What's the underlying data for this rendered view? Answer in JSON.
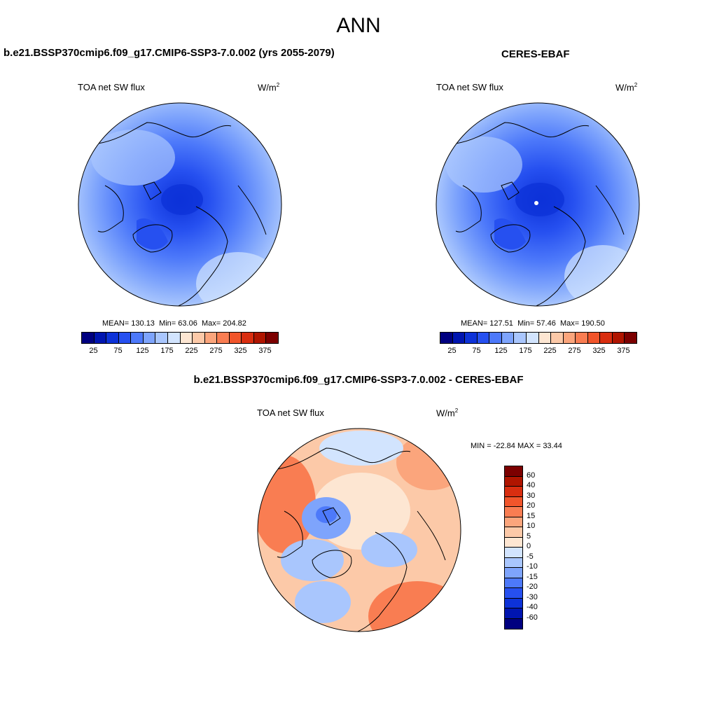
{
  "main_title": "ANN",
  "panels": {
    "model": {
      "title": "b.e21.BSSP370cmip6.f09_g17.CMIP6-SSP3-7.0.002 (yrs 2055-2079)",
      "variable": "TOA net SW flux",
      "units": "W/m",
      "units_sup": "2",
      "mean_label": "MEAN=",
      "mean": "130.13",
      "min_label": "Min=",
      "min": "63.06",
      "max_label": "Max=",
      "max": "204.82"
    },
    "obs": {
      "title": "CERES-EBAF",
      "variable": "TOA net SW flux",
      "units": "W/m",
      "units_sup": "2",
      "mean_label": "MEAN=",
      "mean": "127.51",
      "min_label": "Min=",
      "min": "57.46",
      "max_label": "Max=",
      "max": "190.50"
    },
    "diff": {
      "title": "b.e21.BSSP370cmip6.f09_g17.CMIP6-SSP3-7.0.002 - CERES-EBAF",
      "variable": "TOA net SW flux",
      "units": "W/m",
      "units_sup": "2",
      "minmax": "MIN = -22.84 MAX =  33.44"
    }
  },
  "colorbar_abs": {
    "colors": [
      "#000080",
      "#0015b0",
      "#0d32d8",
      "#2650f0",
      "#4d79fa",
      "#7ea4fc",
      "#a9c6fd",
      "#d2e4fe",
      "#fde6d2",
      "#fcc9a8",
      "#fba57c",
      "#f97d52",
      "#f1552b",
      "#d92e10",
      "#b01500",
      "#7c0000"
    ],
    "labels": [
      "25",
      "75",
      "125",
      "175",
      "225",
      "275",
      "325",
      "375"
    ]
  },
  "colorbar_diff": {
    "colors": [
      "#7c0000",
      "#b01500",
      "#d92e10",
      "#f1552b",
      "#f97d52",
      "#fba57c",
      "#fcc9a8",
      "#fde6d2",
      "#d2e4fe",
      "#a9c6fd",
      "#7ea4fc",
      "#4d79fa",
      "#2650f0",
      "#0d32d8",
      "#0015b0",
      "#000080"
    ],
    "labels": [
      "60",
      "40",
      "30",
      "20",
      "15",
      "10",
      "5",
      "0",
      "-5",
      "-10",
      "-15",
      "-20",
      "-30",
      "-40",
      "-60"
    ]
  }
}
